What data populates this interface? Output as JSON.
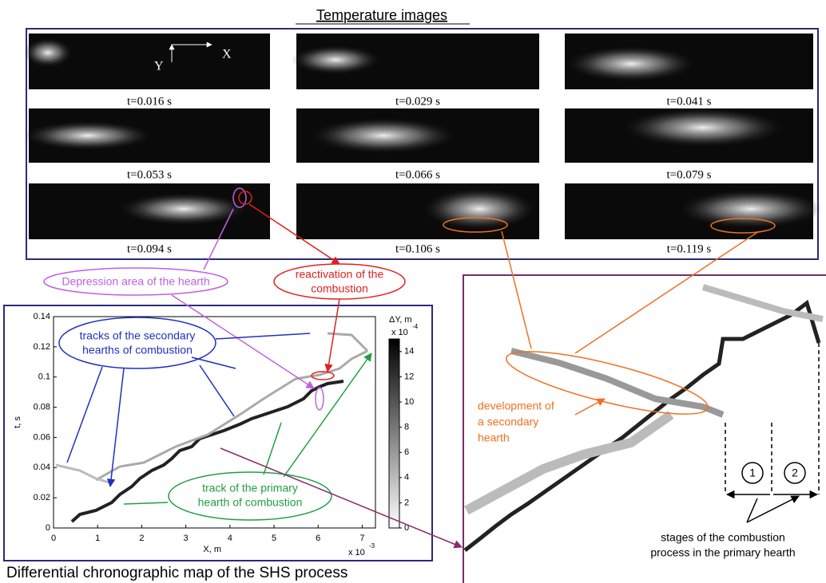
{
  "header": {
    "title": "Temperature images",
    "axis_x": "X",
    "axis_y": "Y"
  },
  "images": [
    "t=0.016 s",
    "t=0.029 s",
    "t=0.041 s",
    "t=0.053 s",
    "t=0.066 s",
    "t=0.079 s",
    "t=0.094 s",
    "t=0.106 s",
    "t=0.119 s"
  ],
  "annotations": {
    "depression": "Depression area of the hearth",
    "reactivation": [
      "reactivation of the",
      "combustion"
    ],
    "secondary_tracks": [
      "tracks of the secondary",
      "hearths of combustion"
    ],
    "primary_track": [
      "track of the primary",
      "hearth of combustion"
    ],
    "development": [
      "development of",
      "a secondary",
      "hearth"
    ],
    "stages": [
      "stages of the combustion",
      "process in the primary hearth"
    ],
    "stage_numbers": [
      "1",
      "2"
    ]
  },
  "map": {
    "xlabel": "X, m",
    "ylabel": "t, s",
    "x_multiplier": "x 10",
    "x_exponent": "-3",
    "xlim": [
      0,
      7.3
    ],
    "xticks": [
      0,
      1,
      2,
      3,
      4,
      5,
      6,
      7
    ],
    "ylim": [
      0,
      0.14
    ],
    "yticks": [
      0,
      0.02,
      0.04,
      0.06,
      0.08,
      0.1,
      0.12,
      0.14
    ],
    "colorbar": {
      "label": "ΔY, m",
      "multiplier": "x 10",
      "exponent": "-4",
      "lim": [
        0,
        15
      ],
      "ticks": [
        0,
        2,
        4,
        6,
        8,
        10,
        12,
        14
      ]
    }
  },
  "caption": "Differential chronographic map of the SHS process"
}
